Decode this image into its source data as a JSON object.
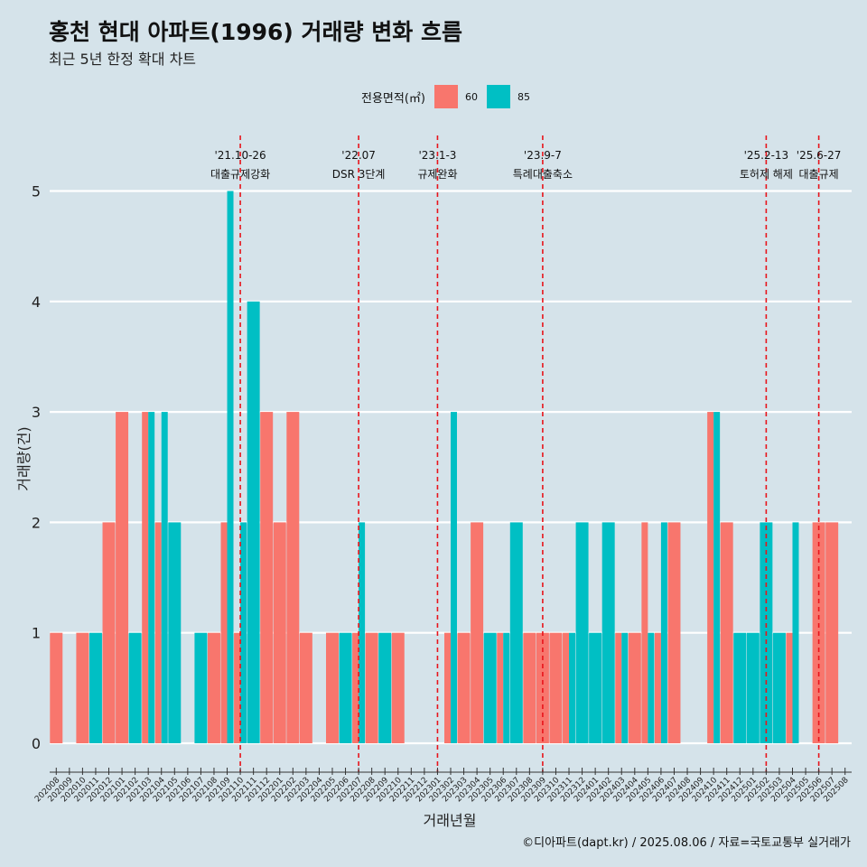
{
  "title": "홍천 현대 아파트(1996) 거래량 변화 흐름",
  "subtitle": "최근 5년 한정 확대 차트",
  "caption": "©디아파트(dapt.kr) / 2025.08.06 / 자료=국토교통부 실거래가",
  "legend": {
    "title": "전용면적(㎡)",
    "items": [
      {
        "label": "60",
        "color": "#f8766d"
      },
      {
        "label": "85",
        "color": "#00bfc4"
      }
    ]
  },
  "chart_data": {
    "type": "bar",
    "xlabel": "거래년월",
    "ylabel": "거래량(건)",
    "ylim": [
      0,
      5
    ],
    "yticks": [
      0,
      1,
      2,
      3,
      4,
      5
    ],
    "grid": true,
    "legend_position": "top",
    "categories": [
      "202008",
      "202009",
      "202010",
      "202011",
      "202012",
      "202101",
      "202102",
      "202103",
      "202104",
      "202105",
      "202106",
      "202107",
      "202108",
      "202109",
      "202110",
      "202111",
      "202112",
      "202201",
      "202202",
      "202203",
      "202204",
      "202205",
      "202206",
      "202207",
      "202208",
      "202209",
      "202210",
      "202211",
      "202212",
      "202301",
      "202302",
      "202303",
      "202304",
      "202305",
      "202306",
      "202307",
      "202308",
      "202309",
      "202310",
      "202311",
      "202312",
      "202401",
      "202402",
      "202403",
      "202404",
      "202405",
      "202406",
      "202407",
      "202408",
      "202409",
      "202410",
      "202411",
      "202412",
      "202501",
      "202502",
      "202503",
      "202504",
      "202505",
      "202506",
      "202507",
      "202508"
    ],
    "series": [
      {
        "name": "60",
        "color": "#f8766d",
        "values": [
          1,
          0,
          1,
          0,
          2,
          3,
          0,
          3,
          2,
          0,
          0,
          0,
          1,
          2,
          1,
          0,
          3,
          2,
          3,
          1,
          0,
          1,
          0,
          1,
          1,
          0,
          1,
          0,
          0,
          0,
          1,
          1,
          2,
          0,
          1,
          0,
          1,
          1,
          1,
          1,
          0,
          0,
          0,
          1,
          1,
          2,
          1,
          2,
          0,
          0,
          3,
          2,
          0,
          0,
          0,
          0,
          1,
          0,
          2,
          2,
          0
        ]
      },
      {
        "name": "85",
        "color": "#00bfc4",
        "values": [
          0,
          0,
          0,
          1,
          0,
          0,
          1,
          3,
          3,
          2,
          0,
          1,
          0,
          5,
          2,
          4,
          0,
          0,
          0,
          0,
          0,
          0,
          1,
          2,
          0,
          1,
          0,
          0,
          0,
          0,
          3,
          0,
          0,
          1,
          1,
          2,
          0,
          0,
          0,
          1,
          2,
          1,
          2,
          1,
          0,
          1,
          2,
          0,
          0,
          0,
          3,
          0,
          1,
          1,
          2,
          1,
          2,
          0,
          0,
          0,
          0
        ]
      }
    ],
    "events": [
      {
        "date": "'21.10-26",
        "label": "대출규제강화",
        "x": "202110"
      },
      {
        "date": "'22.07",
        "label": "DSR 3단계",
        "x": "202207"
      },
      {
        "date": "'23.1-3",
        "label": "규제완화",
        "x": "202301"
      },
      {
        "date": "'23.9-7",
        "label": "특례대출축소",
        "x": "202309"
      },
      {
        "date": "'25.2-13",
        "label": "토허제 해제",
        "x": "202502"
      },
      {
        "date": "'25.6-27",
        "label": "대출규제",
        "x": "202506"
      }
    ]
  }
}
